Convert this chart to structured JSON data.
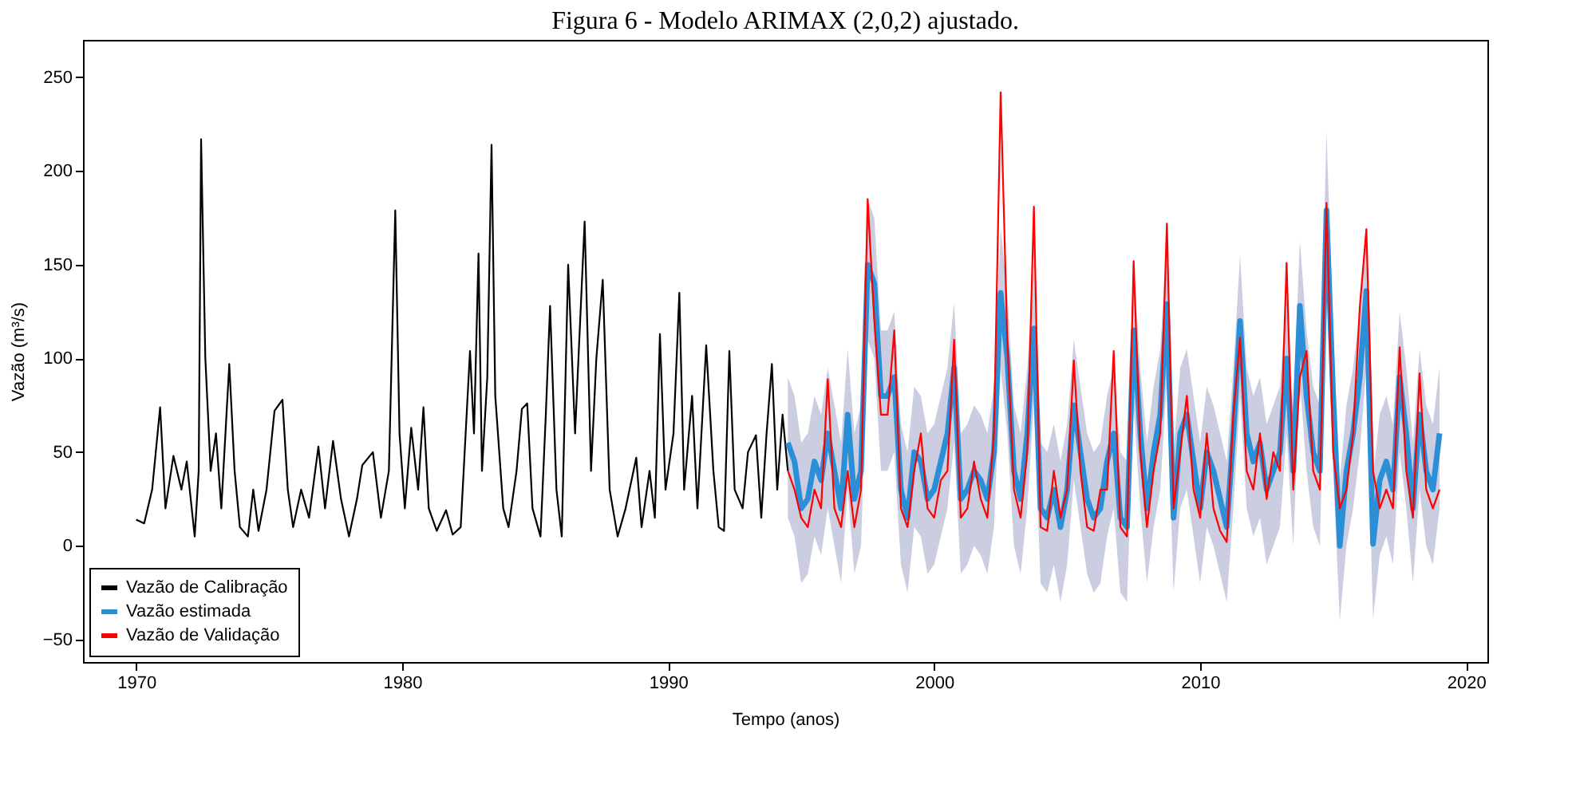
{
  "chart_data": {
    "type": "line",
    "title": "Figura 6 - Modelo ARIMAX (2,0,2) ajustado.",
    "xlabel": "Tempo (anos)",
    "ylabel": "Vazão (m³/s)",
    "xlim": [
      1968,
      2020.8
    ],
    "xticks": [
      1970,
      1980,
      1990,
      2000,
      2010,
      2020
    ],
    "ylim": [
      -62,
      270
    ],
    "yticks": [
      -50,
      0,
      50,
      100,
      150,
      200,
      250
    ],
    "grid": false,
    "legend": "bottom left",
    "series": [
      {
        "name": "Vazão de Calibração",
        "color": "#000000",
        "x": [
          1970.0,
          1970.3,
          1970.6,
          1970.9,
          1971.1,
          1971.4,
          1971.7,
          1971.9,
          1972.2,
          1972.35,
          1972.44,
          1972.6,
          1972.8,
          1973.0,
          1973.2,
          1973.5,
          1973.7,
          1973.9,
          1974.2,
          1974.4,
          1974.6,
          1974.9,
          1975.2,
          1975.5,
          1975.7,
          1975.9,
          1976.2,
          1976.5,
          1976.85,
          1977.1,
          1977.4,
          1977.7,
          1978.0,
          1978.3,
          1978.5,
          1978.9,
          1979.2,
          1979.5,
          1979.74,
          1979.9,
          1980.1,
          1980.34,
          1980.6,
          1980.8,
          1981.0,
          1981.3,
          1981.65,
          1981.9,
          1982.2,
          1982.55,
          1982.7,
          1982.87,
          1983.0,
          1983.2,
          1983.36,
          1983.5,
          1983.8,
          1984.0,
          1984.3,
          1984.5,
          1984.7,
          1984.9,
          1985.2,
          1985.4,
          1985.56,
          1985.8,
          1986.0,
          1986.24,
          1986.5,
          1986.86,
          1987.1,
          1987.3,
          1987.54,
          1987.8,
          1988.1,
          1988.4,
          1988.8,
          1989.0,
          1989.3,
          1989.5,
          1989.69,
          1989.9,
          1990.2,
          1990.42,
          1990.6,
          1990.9,
          1991.1,
          1991.43,
          1991.7,
          1991.9,
          1992.1,
          1992.3,
          1992.5,
          1992.8,
          1993.0,
          1993.3,
          1993.5,
          1993.7,
          1993.9,
          1994.1,
          1994.3,
          1994.5
        ],
        "values": [
          14,
          12,
          30,
          74,
          20,
          48,
          30,
          45,
          5,
          40,
          217,
          100,
          40,
          60,
          20,
          97,
          40,
          10,
          5,
          30,
          8,
          30,
          72,
          78,
          30,
          10,
          30,
          15,
          53,
          20,
          56,
          25,
          5,
          25,
          43,
          50,
          15,
          40,
          179,
          60,
          20,
          63,
          30,
          74,
          20,
          8,
          19,
          6,
          10,
          104,
          60,
          156,
          40,
          90,
          214,
          80,
          20,
          10,
          40,
          73,
          76,
          20,
          5,
          70,
          128,
          30,
          5,
          150,
          60,
          173,
          40,
          100,
          142,
          30,
          5,
          20,
          47,
          10,
          40,
          15,
          113,
          30,
          60,
          135,
          30,
          80,
          20,
          107,
          40,
          10,
          8,
          104,
          30,
          20,
          50,
          59,
          15,
          60,
          97,
          30,
          70,
          40
        ]
      },
      {
        "name": "Vazão estimada",
        "color": "#2b8fd8",
        "x": [
          1994.5,
          1994.75,
          1995.0,
          1995.25,
          1995.5,
          1995.75,
          1996.0,
          1996.25,
          1996.5,
          1996.75,
          1997.0,
          1997.25,
          1997.5,
          1997.75,
          1998.0,
          1998.25,
          1998.5,
          1998.75,
          1999.0,
          1999.25,
          1999.5,
          1999.75,
          2000.0,
          2000.25,
          2000.5,
          2000.75,
          2001.0,
          2001.25,
          2001.5,
          2001.75,
          2002.0,
          2002.25,
          2002.5,
          2002.75,
          2003.0,
          2003.25,
          2003.5,
          2003.75,
          2004.0,
          2004.25,
          2004.5,
          2004.75,
          2005.0,
          2005.25,
          2005.5,
          2005.75,
          2006.0,
          2006.25,
          2006.5,
          2006.75,
          2007.0,
          2007.25,
          2007.5,
          2007.75,
          2008.0,
          2008.25,
          2008.5,
          2008.75,
          2009.0,
          2009.25,
          2009.5,
          2009.75,
          2010.0,
          2010.25,
          2010.5,
          2010.75,
          2011.0,
          2011.25,
          2011.5,
          2011.75,
          2012.0,
          2012.25,
          2012.5,
          2012.75,
          2013.0,
          2013.25,
          2013.5,
          2013.75,
          2014.0,
          2014.25,
          2014.5,
          2014.75,
          2015.0,
          2015.25,
          2015.5,
          2015.75,
          2016.0,
          2016.25,
          2016.5,
          2016.75,
          2017.0,
          2017.25,
          2017.5,
          2017.75,
          2018.0,
          2018.25,
          2018.5,
          2018.75,
          2019.0
        ],
        "values": [
          55,
          45,
          20,
          25,
          45,
          35,
          60,
          40,
          20,
          70,
          25,
          40,
          150,
          140,
          80,
          80,
          90,
          30,
          15,
          50,
          45,
          25,
          30,
          45,
          60,
          95,
          25,
          30,
          40,
          35,
          25,
          50,
          135,
          100,
          40,
          25,
          60,
          116,
          20,
          15,
          30,
          10,
          30,
          75,
          50,
          25,
          15,
          20,
          45,
          60,
          15,
          10,
          115,
          60,
          20,
          50,
          70,
          129,
          15,
          60,
          70,
          45,
          20,
          50,
          40,
          25,
          10,
          60,
          120,
          60,
          45,
          55,
          30,
          40,
          50,
          100,
          40,
          128,
          80,
          50,
          40,
          179,
          80,
          0,
          40,
          60,
          90,
          136,
          1,
          35,
          45,
          30,
          90,
          60,
          20,
          70,
          40,
          30,
          60
        ],
        "lower": [
          15,
          5,
          -20,
          -15,
          5,
          -5,
          20,
          0,
          -20,
          30,
          -15,
          0,
          110,
          100,
          40,
          40,
          50,
          -10,
          -25,
          10,
          5,
          -15,
          -10,
          5,
          20,
          55,
          -15,
          -10,
          0,
          -5,
          -15,
          10,
          95,
          60,
          0,
          -15,
          20,
          76,
          -20,
          -25,
          -10,
          -30,
          -10,
          35,
          10,
          -15,
          -25,
          -20,
          5,
          20,
          -25,
          -30,
          75,
          20,
          -20,
          10,
          30,
          89,
          -25,
          20,
          30,
          5,
          -20,
          10,
          0,
          -15,
          -30,
          20,
          80,
          20,
          5,
          15,
          -10,
          0,
          10,
          60,
          0,
          88,
          40,
          10,
          0,
          139,
          40,
          -40,
          0,
          20,
          50,
          96,
          -39,
          -5,
          5,
          -10,
          50,
          20,
          -20,
          30,
          0,
          -10,
          20
        ],
        "upper": [
          90,
          80,
          55,
          60,
          80,
          70,
          95,
          75,
          55,
          105,
          60,
          75,
          185,
          175,
          115,
          115,
          125,
          65,
          50,
          85,
          80,
          60,
          65,
          80,
          95,
          130,
          60,
          65,
          75,
          70,
          60,
          85,
          170,
          135,
          75,
          60,
          95,
          151,
          55,
          50,
          65,
          45,
          65,
          110,
          85,
          60,
          50,
          55,
          80,
          95,
          50,
          45,
          150,
          95,
          55,
          85,
          105,
          164,
          50,
          95,
          105,
          80,
          55,
          85,
          75,
          60,
          45,
          95,
          155,
          95,
          80,
          90,
          65,
          75,
          85,
          135,
          75,
          163,
          115,
          85,
          75,
          221,
          115,
          35,
          75,
          95,
          125,
          171,
          36,
          70,
          80,
          65,
          125,
          95,
          55,
          105,
          75,
          65,
          95
        ]
      },
      {
        "name": "Vazão de Validação",
        "color": "#ff0000",
        "x": [
          1994.5,
          1994.75,
          1995.0,
          1995.25,
          1995.5,
          1995.75,
          1996.0,
          1996.25,
          1996.5,
          1996.75,
          1997.0,
          1997.25,
          1997.5,
          1997.75,
          1998.0,
          1998.25,
          1998.5,
          1998.75,
          1999.0,
          1999.25,
          1999.5,
          1999.75,
          2000.0,
          2000.25,
          2000.5,
          2000.75,
          2001.0,
          2001.25,
          2001.5,
          2001.75,
          2002.0,
          2002.25,
          2002.5,
          2002.75,
          2003.0,
          2003.25,
          2003.5,
          2003.75,
          2004.0,
          2004.25,
          2004.5,
          2004.75,
          2005.0,
          2005.25,
          2005.5,
          2005.75,
          2006.0,
          2006.25,
          2006.5,
          2006.75,
          2007.0,
          2007.25,
          2007.5,
          2007.75,
          2008.0,
          2008.25,
          2008.5,
          2008.75,
          2009.0,
          2009.25,
          2009.5,
          2009.75,
          2010.0,
          2010.25,
          2010.5,
          2010.75,
          2011.0,
          2011.25,
          2011.5,
          2011.75,
          2012.0,
          2012.25,
          2012.5,
          2012.75,
          2013.0,
          2013.25,
          2013.5,
          2013.75,
          2014.0,
          2014.25,
          2014.5,
          2014.75,
          2015.0,
          2015.25,
          2015.5,
          2015.75,
          2016.0,
          2016.25,
          2016.5,
          2016.75,
          2017.0,
          2017.25,
          2017.5,
          2017.75,
          2018.0,
          2018.25,
          2018.5,
          2018.75,
          2019.0
        ],
        "values": [
          40,
          30,
          15,
          10,
          30,
          20,
          89,
          20,
          10,
          40,
          10,
          30,
          185,
          120,
          70,
          70,
          115,
          20,
          10,
          40,
          60,
          20,
          15,
          35,
          40,
          110,
          15,
          20,
          45,
          25,
          15,
          60,
          242,
          110,
          30,
          15,
          50,
          181,
          10,
          8,
          40,
          15,
          30,
          99,
          40,
          10,
          8,
          30,
          30,
          104,
          10,
          5,
          152,
          50,
          10,
          40,
          60,
          172,
          20,
          50,
          80,
          30,
          15,
          60,
          20,
          8,
          2,
          70,
          111,
          40,
          30,
          60,
          25,
          50,
          40,
          151,
          30,
          90,
          104,
          40,
          30,
          183,
          50,
          20,
          30,
          60,
          127,
          169,
          40,
          20,
          30,
          20,
          106,
          40,
          15,
          92,
          30,
          20,
          30
        ]
      }
    ]
  }
}
